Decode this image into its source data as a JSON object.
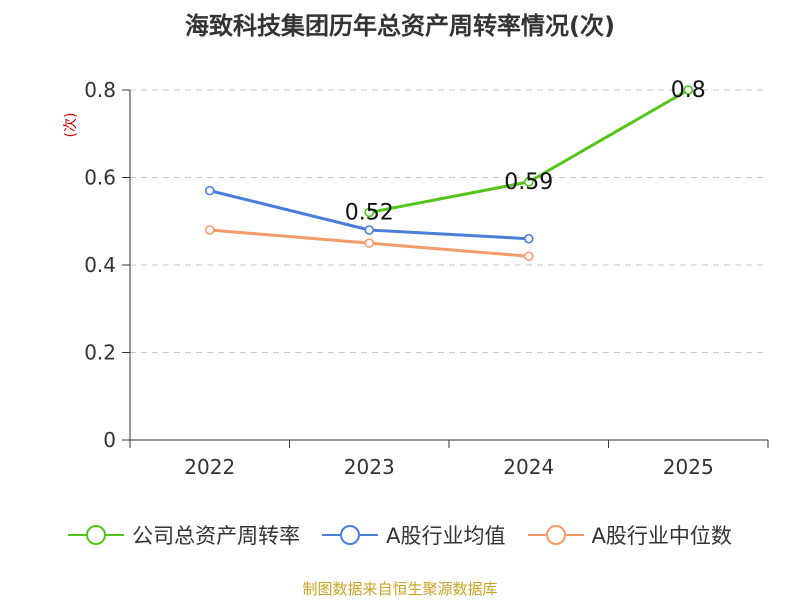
{
  "chart_data": {
    "type": "line",
    "title": "海致科技集团历年总资产周转率情况(次)",
    "ylabel": "(次)",
    "categories": [
      "2022",
      "2023",
      "2024",
      "2025"
    ],
    "ylim": [
      0,
      0.8
    ],
    "yticks": [
      "0",
      "0.2",
      "0.4",
      "0.6",
      "0.8"
    ],
    "grid": true,
    "legend_position": "bottom",
    "series": [
      {
        "name": "公司总资产周转率",
        "color": "#52c41a",
        "values": [
          null,
          0.52,
          0.59,
          0.8
        ],
        "labels": [
          "",
          "0.52",
          "0.59",
          "0.8"
        ]
      },
      {
        "name": "A股行业均值",
        "color": "#4a7fd9",
        "values": [
          0.57,
          0.48,
          0.46,
          null
        ],
        "labels": [
          "",
          "",
          "",
          ""
        ]
      },
      {
        "name": "A股行业中位数",
        "color": "#f59a6a",
        "values": [
          0.48,
          0.45,
          0.42,
          null
        ],
        "labels": [
          "",
          "",
          "",
          ""
        ]
      }
    ]
  },
  "footer": {
    "source": "制图数据来自恒生聚源数据库"
  }
}
